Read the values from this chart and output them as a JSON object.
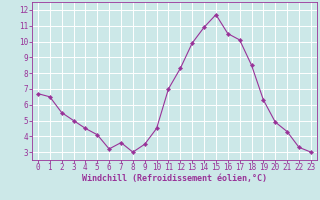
{
  "x": [
    0,
    1,
    2,
    3,
    4,
    5,
    6,
    7,
    8,
    9,
    10,
    11,
    12,
    13,
    14,
    15,
    16,
    17,
    18,
    19,
    20,
    21,
    22,
    23
  ],
  "y": [
    6.7,
    6.5,
    5.5,
    5.0,
    4.5,
    4.1,
    3.2,
    3.6,
    3.0,
    3.5,
    4.5,
    7.0,
    8.3,
    9.9,
    10.9,
    11.7,
    10.5,
    10.1,
    8.5,
    6.3,
    4.9,
    4.3,
    3.3,
    3.0
  ],
  "line_color": "#993399",
  "marker": "D",
  "marker_size": 2.2,
  "bg_color": "#cce8e8",
  "grid_color": "#ffffff",
  "tick_color": "#993399",
  "label_color": "#993399",
  "xlabel": "Windchill (Refroidissement éolien,°C)",
  "xlim": [
    -0.5,
    23.5
  ],
  "ylim": [
    2.5,
    12.5
  ],
  "yticks": [
    3,
    4,
    5,
    6,
    7,
    8,
    9,
    10,
    11,
    12
  ],
  "xticks": [
    0,
    1,
    2,
    3,
    4,
    5,
    6,
    7,
    8,
    9,
    10,
    11,
    12,
    13,
    14,
    15,
    16,
    17,
    18,
    19,
    20,
    21,
    22,
    23
  ],
  "axis_fontsize": 5.5,
  "xlabel_fontsize": 6.0,
  "linewidth": 0.8
}
